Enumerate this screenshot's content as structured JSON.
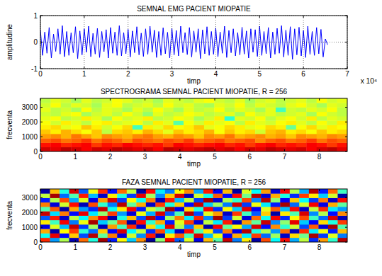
{
  "chart_data": [
    {
      "type": "line",
      "title": "SEMNAL EMG PACIENT MIOPATIE",
      "x_label": "timp",
      "y_label": "amplitudine",
      "annotations": [
        "x 10⁴"
      ],
      "color": "#0000ff",
      "grid": true,
      "xlim": [
        0,
        7
      ],
      "xticks": [
        0,
        1,
        2,
        3,
        4,
        5,
        6,
        7
      ],
      "ylim": [
        -1,
        1
      ],
      "yticks": [
        -1,
        0,
        1
      ],
      "x": [
        0,
        0.05,
        0.1,
        0.15,
        0.2,
        0.25,
        0.3,
        0.35,
        0.4,
        0.45,
        0.5,
        0.55,
        0.6,
        0.65,
        0.7,
        0.75,
        0.8,
        0.85,
        0.9,
        0.95,
        1,
        1.05,
        1.1,
        1.15,
        1.2,
        1.25,
        1.3,
        1.35,
        1.4,
        1.45,
        1.5,
        1.55,
        1.6,
        1.65,
        1.7,
        1.75,
        1.8,
        1.85,
        1.9,
        1.95,
        2,
        2.05,
        2.1,
        2.15,
        2.2,
        2.25,
        2.3,
        2.35,
        2.4,
        2.45,
        2.5,
        2.55,
        2.6,
        2.65,
        2.7,
        2.75,
        2.8,
        2.85,
        2.9,
        2.95,
        3,
        3.05,
        3.1,
        3.15,
        3.2,
        3.25,
        3.3,
        3.35,
        3.4,
        3.45,
        3.5,
        3.55,
        3.6,
        3.65,
        3.7,
        3.75,
        3.8,
        3.85,
        3.9,
        3.95,
        4,
        4.05,
        4.1,
        4.15,
        4.2,
        4.25,
        4.3,
        4.35,
        4.4,
        4.45,
        4.5,
        4.55,
        4.6,
        4.65,
        4.7,
        4.75,
        4.8,
        4.85,
        4.9,
        4.95,
        5,
        5.05,
        5.1,
        5.15,
        5.2,
        5.25,
        5.3,
        5.35,
        5.4,
        5.45,
        5.5,
        5.55,
        5.6,
        5.65,
        5.7,
        5.75,
        5.8,
        5.85,
        5.9,
        5.95,
        6,
        6.05,
        6.1,
        6.15,
        6.2,
        6.25,
        6.3,
        6.35,
        6.4,
        6.45,
        6.5,
        6.55
      ],
      "values": [
        0.45,
        -0.5,
        0.38,
        -0.42,
        0.55,
        -0.6,
        0.3,
        -0.35,
        0.5,
        -0.45,
        0.62,
        -0.55,
        0.4,
        -0.5,
        0.35,
        -0.4,
        0.58,
        -0.62,
        0.42,
        -0.48,
        0.5,
        -0.38,
        0.6,
        -0.55,
        0.33,
        -0.45,
        0.52,
        -0.58,
        0.4,
        -0.36,
        0.47,
        -0.6,
        0.55,
        -0.42,
        0.38,
        -0.5,
        0.62,
        -0.52,
        0.36,
        -0.44,
        0.48,
        -0.56,
        0.42,
        -0.4,
        0.58,
        -0.48,
        0.34,
        -0.54,
        0.5,
        -0.46,
        0.6,
        -0.38,
        0.45,
        -0.58,
        0.4,
        -0.5,
        0.54,
        -0.44,
        0.37,
        -0.6,
        0.52,
        -0.48,
        0.44,
        -0.52,
        0.6,
        -0.4,
        0.36,
        -0.47,
        0.55,
        -0.56,
        0.42,
        -0.38,
        0.5,
        -0.62,
        0.46,
        -0.44,
        0.58,
        -0.5,
        0.4,
        -0.46,
        0.53,
        -0.55,
        0.38,
        -0.42,
        0.6,
        -0.58,
        0.44,
        -0.4,
        0.5,
        -0.52,
        0.36,
        -0.48,
        0.56,
        -0.45,
        0.42,
        -0.6,
        0.5,
        -0.38,
        0.47,
        -0.54,
        0.6,
        -0.5,
        0.4,
        -0.44,
        0.55,
        -0.6,
        0.38,
        -0.46,
        0.52,
        -0.42,
        0.62,
        -0.56,
        0.45,
        -0.5,
        0.58,
        -0.65,
        0.5,
        -0.48,
        0.56,
        -0.52,
        0.44,
        -0.58,
        0.6,
        -0.46,
        0.4,
        -0.5,
        0.55,
        -0.44,
        0.48,
        -0.56,
        0.12,
        -0.1
      ]
    },
    {
      "type": "heatmap",
      "title": "SPECTROGRAMA SEMNAL PACIENT MIOPATIE, R = 256",
      "x_label": "timp",
      "y_label": "frecventa",
      "xlim": [
        0,
        8.8
      ],
      "xticks": [
        0,
        1,
        2,
        3,
        4,
        5,
        6,
        7,
        8
      ],
      "ylim": [
        0,
        3600
      ],
      "yticks": [
        0,
        1000,
        2000,
        3000
      ],
      "zlim": [
        -50,
        0
      ],
      "z": [
        [
          -4,
          -5,
          -3,
          -4,
          -6,
          -4,
          -5,
          -3,
          -4,
          -5,
          -4,
          -6,
          -3,
          -4,
          -5,
          -4,
          -3,
          -5,
          -4,
          -6,
          -4,
          -5,
          -3,
          -4,
          -5,
          -4,
          -6,
          -4,
          -3,
          -5
        ],
        [
          -7,
          -6,
          -8,
          -7,
          -6,
          -9,
          -7,
          -8,
          -6,
          -7,
          -8,
          -7,
          -9,
          -6,
          -7,
          -8,
          -7,
          -6,
          -8,
          -7,
          -9,
          -7,
          -6,
          -8,
          -7,
          -8,
          -6,
          -7,
          -9,
          -7
        ],
        [
          -11,
          -10,
          -12,
          -11,
          -9,
          -12,
          -10,
          -11,
          -13,
          -10,
          -11,
          -12,
          -10,
          -11,
          -9,
          -12,
          -11,
          -10,
          -12,
          -11,
          -10,
          -13,
          -11,
          -10,
          -12,
          -11,
          -9,
          -12,
          -10,
          -11
        ],
        [
          -14,
          -13,
          -15,
          -12,
          -14,
          -16,
          -13,
          -14,
          -15,
          -13,
          -12,
          -14,
          -15,
          -13,
          -14,
          -16,
          -13,
          -14,
          -12,
          -15,
          -14,
          -13,
          -15,
          -14,
          -16,
          -13,
          -14,
          -15,
          -13,
          -14
        ],
        [
          -16,
          -18,
          -15,
          -17,
          -19,
          -16,
          -22,
          -17,
          -16,
          -18,
          -15,
          -17,
          -20,
          -16,
          -18,
          -17,
          -15,
          -19,
          -16,
          -18,
          -17,
          -21,
          -16,
          -15,
          -18,
          -17,
          -19,
          -16,
          -18,
          -17
        ],
        [
          -18,
          -17,
          -20,
          -19,
          -16,
          -18,
          -21,
          -19,
          -17,
          -28,
          -18,
          -20,
          -17,
          -19,
          -18,
          -16,
          -20,
          -19,
          -17,
          -18,
          -20,
          -19,
          -17,
          -18,
          -26,
          -19,
          -17,
          -20,
          -18,
          -19
        ],
        [
          -19,
          -21,
          -18,
          -20,
          -22,
          -19,
          -18,
          -21,
          -20,
          -19,
          -22,
          -18,
          -20,
          -27,
          -19,
          -21,
          -18,
          -20,
          -19,
          -22,
          -18,
          -20,
          -21,
          -19,
          -18,
          -20,
          -22,
          -19,
          -21,
          -18
        ],
        [
          -20,
          -19,
          -22,
          -21,
          -18,
          -20,
          -23,
          -19,
          -21,
          -20,
          -18,
          -22,
          -21,
          -19,
          -20,
          -23,
          -21,
          -18,
          -29,
          -20,
          -21,
          -19,
          -22,
          -20,
          -19,
          -21,
          -18,
          -22,
          -20,
          -21
        ],
        [
          -21,
          -22,
          -20,
          -19,
          -23,
          -21,
          -20,
          -22,
          -19,
          -21,
          -24,
          -20,
          -22,
          -21,
          -19,
          -20,
          -22,
          -21,
          -20,
          -23,
          -19,
          -21,
          -20,
          -22,
          -21,
          -20,
          -23,
          -19,
          -21,
          -22
        ],
        [
          -20,
          -22,
          -21,
          -23,
          -19,
          -22,
          -20,
          -21,
          -23,
          -20,
          -22,
          -19,
          -21,
          -23,
          -20,
          -22,
          -21,
          -19,
          -22,
          -20,
          -21,
          -23,
          -20,
          -28,
          -21,
          -22,
          -20,
          -21,
          -19,
          -22
        ],
        [
          -21,
          -19,
          -22,
          -20,
          -21,
          -23,
          -20,
          -19,
          -22,
          -21,
          -20,
          -22,
          -19,
          -21,
          -20,
          -22,
          -23,
          -20,
          -21,
          -19,
          -22,
          -20,
          -21,
          -22,
          -20,
          -19,
          -21,
          -23,
          -20,
          -21
        ],
        [
          -22,
          -20,
          -21,
          -23,
          -20,
          -22,
          -21,
          -19,
          -20,
          -22,
          -21,
          -23,
          -20,
          -21,
          -22,
          -20,
          -19,
          -21,
          -22,
          -20,
          -23,
          -21,
          -20,
          -22,
          -21,
          -20,
          -22,
          -19,
          -21,
          -20
        ]
      ]
    },
    {
      "type": "heatmap",
      "title": "FAZA SEMNAL PACIENT MIOPATIE, R = 256",
      "x_label": "timp",
      "y_label": "frecventa",
      "xlim": [
        0,
        8.8
      ],
      "xticks": [
        0,
        1,
        2,
        3,
        4,
        5,
        6,
        7,
        8
      ],
      "ylim": [
        0,
        3600
      ],
      "yticks": [
        0,
        1000,
        2000,
        3000
      ],
      "zlim": [
        -3.14,
        3.14
      ],
      "z": [
        [
          2.1,
          -1.4,
          0.3,
          -2.8,
          1.7,
          -0.6,
          2.9,
          -2.2,
          0.8,
          -1.1,
          1.5,
          -3.0,
          0.1,
          2.4,
          -1.8,
          0.6,
          -2.5,
          1.2,
          -0.3,
          2.7,
          -1.6,
          0.9,
          -2.9,
          1.9,
          -0.8,
          2.3,
          -1.3,
          0.4,
          -2.1,
          1.4,
          -0.5,
          2.8
        ],
        [
          -0.7,
          2.5,
          -2.3,
          1.1,
          -1.9,
          2.8,
          -0.2,
          1.6,
          -2.6,
          0.5,
          -1.5,
          2.2,
          -2.9,
          0.9,
          1.8,
          -0.4,
          2.6,
          -1.2,
          0.7,
          -2.4,
          1.3,
          -0.9,
          2.0,
          -1.7,
          0.2,
          -2.7,
          1.0,
          -0.1,
          2.9,
          -2.0,
          0.6,
          -1.6
        ],
        [
          1.3,
          -2.9,
          0.8,
          2.0,
          -0.5,
          -1.7,
          1.1,
          -2.4,
          2.6,
          -0.8,
          0.4,
          -2.1,
          1.9,
          -1.0,
          -2.7,
          2.3,
          -0.3,
          0.9,
          -1.9,
          1.6,
          -2.5,
          2.8,
          -0.6,
          0.3,
          -1.4,
          1.7,
          -2.8,
          2.1,
          -0.9,
          0.7,
          -2.2,
          1.2
        ],
        [
          -2.5,
          0.6,
          -1.2,
          2.7,
          -2.0,
          0.2,
          -2.8,
          1.4,
          -0.4,
          2.1,
          -2.7,
          1.0,
          -0.7,
          2.5,
          0.3,
          -1.6,
          1.1,
          -2.9,
          2.4,
          -0.2,
          0.8,
          -1.3,
          2.6,
          -2.3,
          1.5,
          -0.5,
          0.5,
          -1.9,
          1.8,
          -2.6,
          2.9,
          -0.3
        ],
        [
          0.9,
          -0.4,
          2.4,
          -1.6,
          0.7,
          2.9,
          -1.1,
          -0.1,
          1.8,
          -2.9,
          2.3,
          -0.5,
          1.3,
          -2.2,
          0.6,
          2.0,
          -2.6,
          0.4,
          -0.9,
          2.2,
          -2.8,
          1.4,
          -0.2,
          2.7,
          -1.5,
          0.1,
          2.5,
          -1.1,
          -2.4,
          1.0,
          -0.6,
          2.0
        ],
        [
          -1.8,
          2.2,
          -2.7,
          0.4,
          -0.8,
          1.5,
          2.4,
          -2.9,
          -0.6,
          1.2,
          -1.9,
          2.8,
          -2.3,
          0.2,
          1.6,
          -0.9,
          2.1,
          -1.5,
          2.9,
          -2.0,
          0.5,
          -2.6,
          1.7,
          -0.7,
          2.4,
          -2.1,
          0.8,
          1.9,
          -0.4,
          -1.7,
          2.6,
          -2.8
        ],
        [
          2.7,
          -1.0,
          1.6,
          -2.3,
          2.5,
          -0.9,
          0.1,
          2.0,
          -1.4,
          -2.6,
          0.7,
          -1.3,
          2.6,
          -1.8,
          -0.3,
          2.8,
          -1.9,
          0.6,
          1.4,
          -2.7,
          2.0,
          -0.4,
          -1.8,
          1.1,
          -2.9,
          0.9,
          -0.3,
          2.6,
          -1.5,
          0.3,
          -2.3,
          1.5
        ],
        [
          -0.3,
          1.8,
          -2.9,
          1.3,
          -1.4,
          -2.1,
          2.7,
          -0.7,
          0.9,
          2.4,
          -2.2,
          0.5,
          -0.1,
          2.9,
          -2.5,
          1.0,
          -0.6,
          2.4,
          -2.1,
          0.8,
          -1.1,
          2.5,
          -2.4,
          0.6,
          1.8,
          -1.2,
          2.3,
          -2.7,
          0.4,
          2.1,
          -0.9,
          -1.4
        ],
        [
          1.6,
          -2.6,
          0.5,
          2.3,
          -2.8,
          1.9,
          -0.5,
          -1.6,
          2.8,
          -0.2,
          1.3,
          -2.7,
          2.0,
          -0.6,
          1.1,
          -2.3,
          2.7,
          -1.1,
          0.2,
          -1.6,
          2.6,
          -2.0,
          0.7,
          -0.9,
          -2.2,
          2.9,
          -1.7,
          0.5,
          2.4,
          -2.5,
          1.3,
          -0.2
        ],
        [
          -2.2,
          0.3,
          1.9,
          -1.3,
          0.6,
          -2.5,
          1.4,
          2.6,
          -2.0,
          0.8,
          -0.7,
          1.6,
          -2.8,
          2.2,
          -1.2,
          0.4,
          -2.0,
          2.9,
          -2.6,
          0.3,
          -0.5,
          1.9,
          -1.5,
          2.8,
          0.1,
          -2.4,
          1.1,
          -0.8,
          -2.0,
          1.6,
          -2.7,
          2.3
        ],
        [
          0.4,
          2.9,
          -1.7,
          -0.3,
          2.2,
          -1.2,
          -2.7,
          0.9,
          -0.6,
          -2.0,
          2.5,
          0.2,
          -1.5,
          1.1,
          2.6,
          -2.8,
          0.5,
          -0.7,
          1.8,
          -2.3,
          2.3,
          -0.1,
          2.8,
          -2.6,
          1.3,
          -0.6,
          -2.1,
          2.0,
          0.9,
          -1.1,
          0.5,
          -2.9
        ],
        [
          -2.9,
          1.2,
          -0.6,
          2.6,
          -1.8,
          0.7,
          2.1,
          -2.3,
          1.7,
          0.4,
          -2.9,
          2.3,
          -0.9,
          -1.6,
          0.8,
          1.5,
          -1.3,
          2.2,
          -2.4,
          1.2,
          -2.9,
          0.6,
          -0.8,
          1.4,
          -2.6,
          2.4,
          0.3,
          -1.3,
          2.8,
          -2.2,
          1.7,
          -0.4
        ]
      ]
    }
  ]
}
